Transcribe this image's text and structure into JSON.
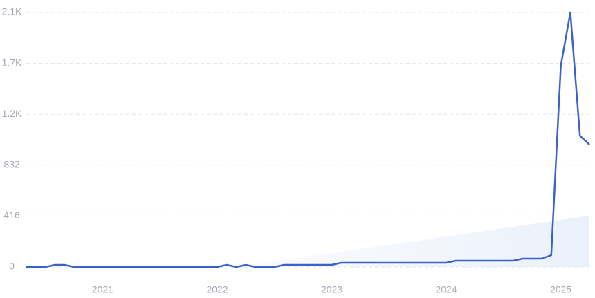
{
  "chart_data": {
    "type": "line",
    "categories": [
      null,
      null,
      null,
      null,
      null,
      null,
      null,
      null,
      "2021",
      null,
      null,
      null,
      null,
      null,
      null,
      null,
      null,
      null,
      null,
      null,
      "2022",
      null,
      null,
      null,
      null,
      null,
      null,
      null,
      null,
      null,
      null,
      null,
      "2023",
      null,
      null,
      null,
      null,
      null,
      null,
      null,
      null,
      null,
      null,
      null,
      "2024",
      null,
      null,
      null,
      null,
      null,
      null,
      null,
      null,
      null,
      null,
      null,
      "2025",
      null,
      null,
      null
    ],
    "values": [
      0,
      0,
      0,
      17,
      17,
      0,
      0,
      0,
      0,
      0,
      0,
      0,
      0,
      0,
      0,
      0,
      0,
      0,
      0,
      0,
      0,
      17,
      0,
      17,
      0,
      0,
      0,
      17,
      17,
      17,
      17,
      17,
      17,
      34,
      34,
      34,
      34,
      34,
      34,
      34,
      34,
      34,
      34,
      34,
      34,
      51,
      51,
      51,
      51,
      51,
      51,
      51,
      68,
      68,
      68,
      96,
      1644,
      2080,
      1073,
      1000
    ],
    "color": "#3a62c9",
    "ylim": [
      0,
      2080
    ],
    "yticks": [
      0,
      416,
      832,
      {
        "value": 1248,
        "label": "1.2K"
      },
      {
        "value": 1664,
        "label": "1.7K"
      },
      {
        "value": 2080,
        "label": "2.1K"
      }
    ],
    "grid": true
  }
}
